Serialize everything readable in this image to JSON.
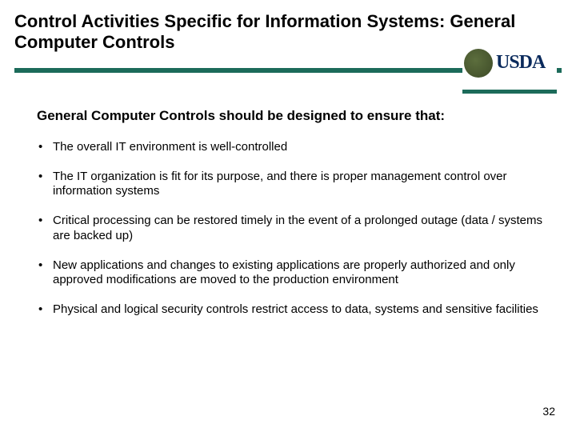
{
  "title": "Control Activities Specific for Information Systems: General Computer Controls",
  "divider_color": "#1c6b5a",
  "logo": {
    "text": "USDA",
    "text_color": "#0a2a5c",
    "bar_color": "#1c6b5a"
  },
  "intro": "General Computer Controls should be designed to ensure that:",
  "bullets": [
    "The overall IT environment is well-controlled",
    "The IT organization is fit for its purpose, and there is proper management control over information systems",
    "Critical processing can be restored timely in the event of a prolonged outage (data / systems are backed up)",
    "New applications and changes to existing applications are properly authorized and only approved modifications are moved to the production environment",
    "Physical and logical security controls restrict access to data, systems and sensitive facilities"
  ],
  "page_number": "32"
}
